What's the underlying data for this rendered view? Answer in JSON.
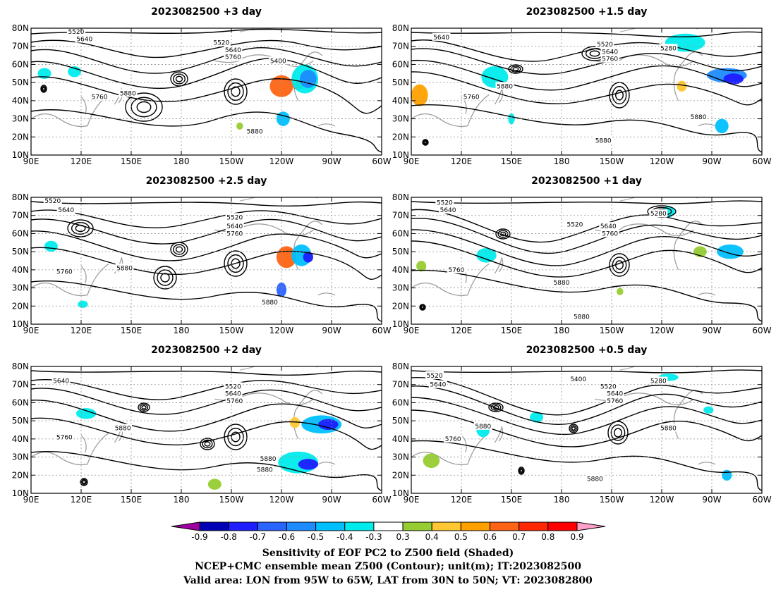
{
  "chart_data": [
    {
      "type": "map-contour",
      "title": "2023082500 +3 day",
      "contour_labels": [
        "5520",
        "5640",
        "5520",
        "5640",
        "5760",
        "5400",
        "5760",
        "5880",
        "5880"
      ]
    },
    {
      "type": "map-contour",
      "title": "2023082500 +1.5 day",
      "contour_labels": [
        "5640",
        "5520",
        "5280",
        "5640",
        "5760",
        "5760",
        "5880",
        "5880",
        "5880"
      ]
    },
    {
      "type": "map-contour",
      "title": "2023082500 +2.5 day",
      "contour_labels": [
        "5520",
        "5640",
        "5520",
        "5640",
        "5760",
        "5760",
        "5880",
        "5880"
      ]
    },
    {
      "type": "map-contour",
      "title": "2023082500 +1 day",
      "contour_labels": [
        "5520",
        "5640",
        "5280",
        "5520",
        "5640",
        "5760",
        "5760",
        "5880",
        "5880",
        "5880"
      ]
    },
    {
      "type": "map-contour",
      "title": "2023082500 +2 day",
      "contour_labels": [
        "5640",
        "5520",
        "5640",
        "5760",
        "5760",
        "5880",
        "5880",
        "5880"
      ]
    },
    {
      "type": "map-contour",
      "title": "2023082500 +0.5 day",
      "contour_labels": [
        "5520",
        "5640",
        "5400",
        "5280",
        "5520",
        "5640",
        "5760",
        "5760",
        "5880",
        "5880",
        "5880"
      ]
    }
  ],
  "axes": {
    "lat_labels": [
      "10N",
      "20N",
      "30N",
      "40N",
      "50N",
      "60N",
      "70N",
      "80N"
    ],
    "lon_labels": [
      "90E",
      "120E",
      "150E",
      "180",
      "150W",
      "120W",
      "90W",
      "60W"
    ],
    "lat_range": [
      10,
      80
    ],
    "lon_range": [
      90,
      300
    ]
  },
  "colorbar": {
    "ticks": [
      "-0.9",
      "-0.8",
      "-0.7",
      "-0.6",
      "-0.5",
      "-0.4",
      "-0.3",
      "0.3",
      "0.4",
      "0.5",
      "0.6",
      "0.7",
      "0.8",
      "0.9"
    ],
    "colors": [
      "#a000a0",
      "#0000b4",
      "#1e1eff",
      "#2a64ff",
      "#1e8cff",
      "#00c0ff",
      "#00ecec",
      "#ffffff",
      "#96cd32",
      "#ffc832",
      "#ffa000",
      "#ff6414",
      "#ff2800",
      "#ff0000",
      "#ffa0c8"
    ]
  },
  "captions": [
    "Sensitivity of EOF PC2 to Z500 field (Shaded)",
    "NCEP+CMC ensemble mean Z500 (Contour); unit(m); IT:2023082500",
    "Valid area: LON from 95W to 65W, LAT from 30N to 50N; VT: 2023082800"
  ]
}
